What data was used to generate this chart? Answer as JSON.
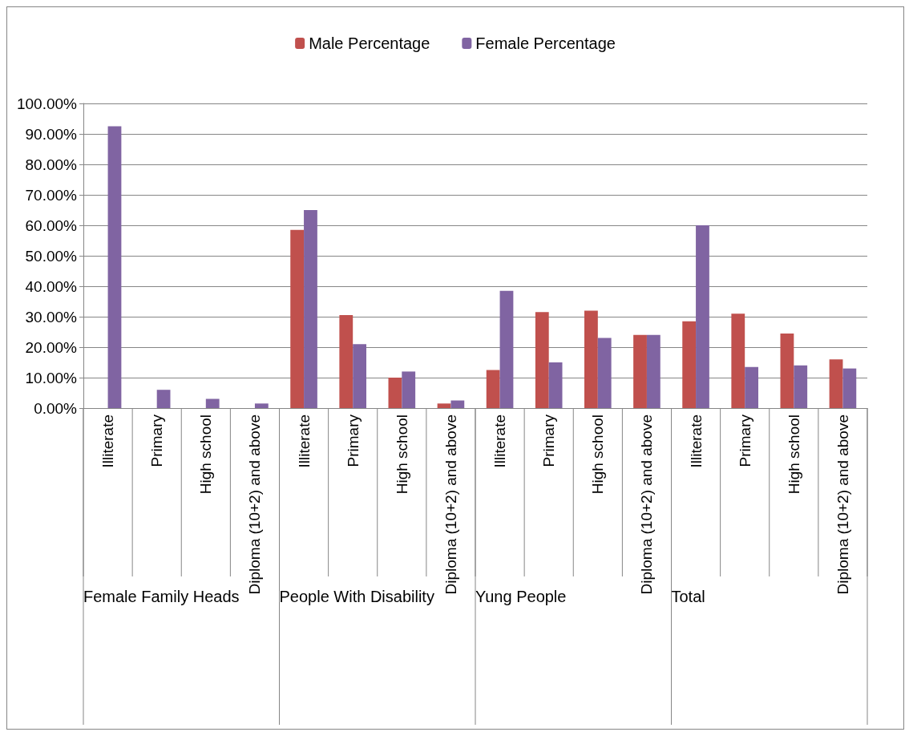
{
  "chart_data": {
    "type": "bar",
    "categories": [
      "Illiterate",
      "Primary",
      "High school",
      "Diploma (10+2) and above",
      "Illiterate",
      "Primary",
      "High school",
      "Diploma (10+2) and above",
      "Illiterate",
      "Primary",
      "High school",
      "Diploma (10+2) and above",
      "Illiterate",
      "Primary",
      "High school",
      "Diploma (10+2) and above"
    ],
    "series": [
      {
        "name": "Male Percentage",
        "color": "#c0504d",
        "values": [
          0,
          0,
          0,
          0,
          58.5,
          30.5,
          10,
          1.5,
          12.5,
          31.5,
          32,
          24,
          28.5,
          31,
          24.5,
          16
        ]
      },
      {
        "name": "Female Percentage",
        "color": "#8064a2",
        "values": [
          92.5,
          6,
          3,
          1.5,
          65,
          21,
          12,
          2.5,
          38.5,
          15,
          23,
          24,
          60,
          13.5,
          14,
          13
        ]
      }
    ],
    "annotations": [
      "Female Family Heads",
      "People With Disability",
      "Yung People",
      "Total"
    ],
    "ylim": [
      0,
      100
    ],
    "yticks": [
      {
        "value": 0,
        "label": "0.00%"
      },
      {
        "value": 10,
        "label": "10.00%"
      },
      {
        "value": 20,
        "label": "20.00%"
      },
      {
        "value": 30,
        "label": "30.00%"
      },
      {
        "value": 40,
        "label": "40.00%"
      },
      {
        "value": 50,
        "label": "50.00%"
      },
      {
        "value": 60,
        "label": "60.00%"
      },
      {
        "value": 70,
        "label": "70.00%"
      },
      {
        "value": 80,
        "label": "80.00%"
      },
      {
        "value": 90,
        "label": "90.00%"
      },
      {
        "value": 100,
        "label": "100.00%"
      }
    ],
    "grid": "y",
    "legend": "top"
  }
}
